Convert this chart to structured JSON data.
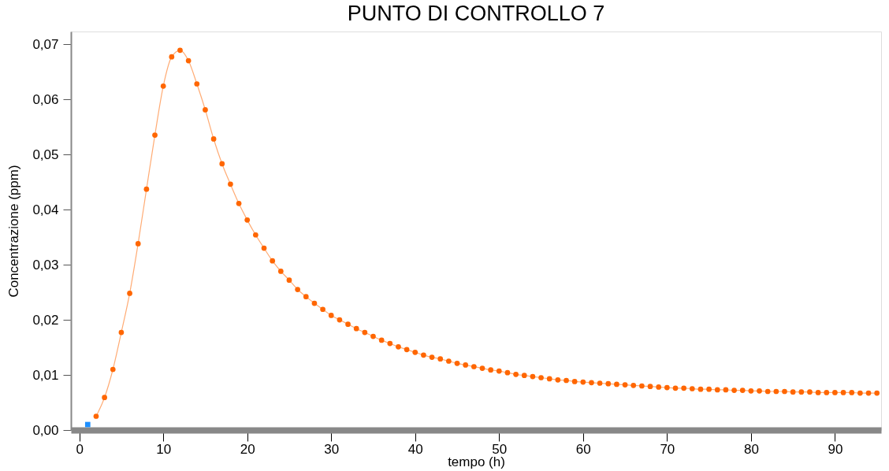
{
  "chart_data": {
    "type": "line",
    "title": "PUNTO DI CONTROLLO 7",
    "xlabel": "tempo (h)",
    "ylabel": "Concentrazione (ppm)",
    "xlim": [
      -1,
      95.5
    ],
    "xticks": [
      0,
      10,
      20,
      30,
      40,
      50,
      60,
      70,
      80,
      90
    ],
    "ylim": [
      0,
      0.0723
    ],
    "yticks": [
      {
        "value": 0,
        "label": "0,00"
      },
      {
        "value": 0.01,
        "label": "0,01"
      },
      {
        "value": 0.02,
        "label": "0,02"
      },
      {
        "value": 0.03,
        "label": "0,03"
      },
      {
        "value": 0.04,
        "label": "0,04"
      },
      {
        "value": 0.05,
        "label": "0,05"
      },
      {
        "value": 0.06,
        "label": "0,06"
      },
      {
        "value": 0.07,
        "label": "0,07"
      }
    ],
    "grid": false,
    "marker": "circle",
    "line_style": "solid",
    "series": [
      {
        "color": "#ff6600",
        "x": [
          2,
          3,
          4,
          5,
          6,
          7,
          8,
          9,
          10,
          11,
          12,
          13,
          14,
          15,
          16,
          17,
          18,
          19,
          20,
          21,
          22,
          23,
          24,
          25,
          26,
          27,
          28,
          29,
          30,
          31,
          32,
          33,
          34,
          35,
          36,
          37,
          38,
          39,
          40,
          41,
          42,
          43,
          44,
          45,
          46,
          47,
          48,
          49,
          50,
          51,
          52,
          53,
          54,
          55,
          56,
          57,
          58,
          59,
          60,
          61,
          62,
          63,
          64,
          65,
          66,
          67,
          68,
          69,
          70,
          71,
          72,
          73,
          74,
          75,
          76,
          77,
          78,
          79,
          80,
          81,
          82,
          83,
          84,
          85,
          86,
          87,
          88,
          89,
          90,
          91,
          92,
          93,
          94,
          95
        ],
        "values": [
          0.0025,
          0.0059,
          0.011,
          0.0177,
          0.0248,
          0.0338,
          0.0437,
          0.0535,
          0.0624,
          0.0677,
          0.0689,
          0.067,
          0.0628,
          0.0581,
          0.0528,
          0.0483,
          0.0446,
          0.0411,
          0.0381,
          0.0354,
          0.033,
          0.0307,
          0.0288,
          0.0272,
          0.0255,
          0.0242,
          0.023,
          0.0219,
          0.0208,
          0.02,
          0.0192,
          0.0184,
          0.0177,
          0.017,
          0.0163,
          0.0157,
          0.0151,
          0.0146,
          0.0141,
          0.0136,
          0.0132,
          0.0129,
          0.0125,
          0.0121,
          0.0118,
          0.0115,
          0.0112,
          0.0109,
          0.0107,
          0.0104,
          0.0101,
          0.0099,
          0.0097,
          0.0095,
          0.0093,
          0.0091,
          0.009,
          0.0088,
          0.0087,
          0.0086,
          0.0085,
          0.0084,
          0.0083,
          0.0082,
          0.0081,
          0.008,
          0.0079,
          0.0078,
          0.0077,
          0.0076,
          0.0076,
          0.0075,
          0.0074,
          0.0074,
          0.0073,
          0.0073,
          0.0072,
          0.0072,
          0.0071,
          0.0071,
          0.007,
          0.007,
          0.007,
          0.0069,
          0.0069,
          0.0069,
          0.0068,
          0.0068,
          0.0068,
          0.0068,
          0.0068,
          0.0067,
          0.0067,
          0.0067
        ]
      },
      {
        "type": "scatter",
        "marker": "square",
        "color": "#1e90ff",
        "x": [
          1
        ],
        "values": [
          0.001
        ]
      }
    ]
  }
}
